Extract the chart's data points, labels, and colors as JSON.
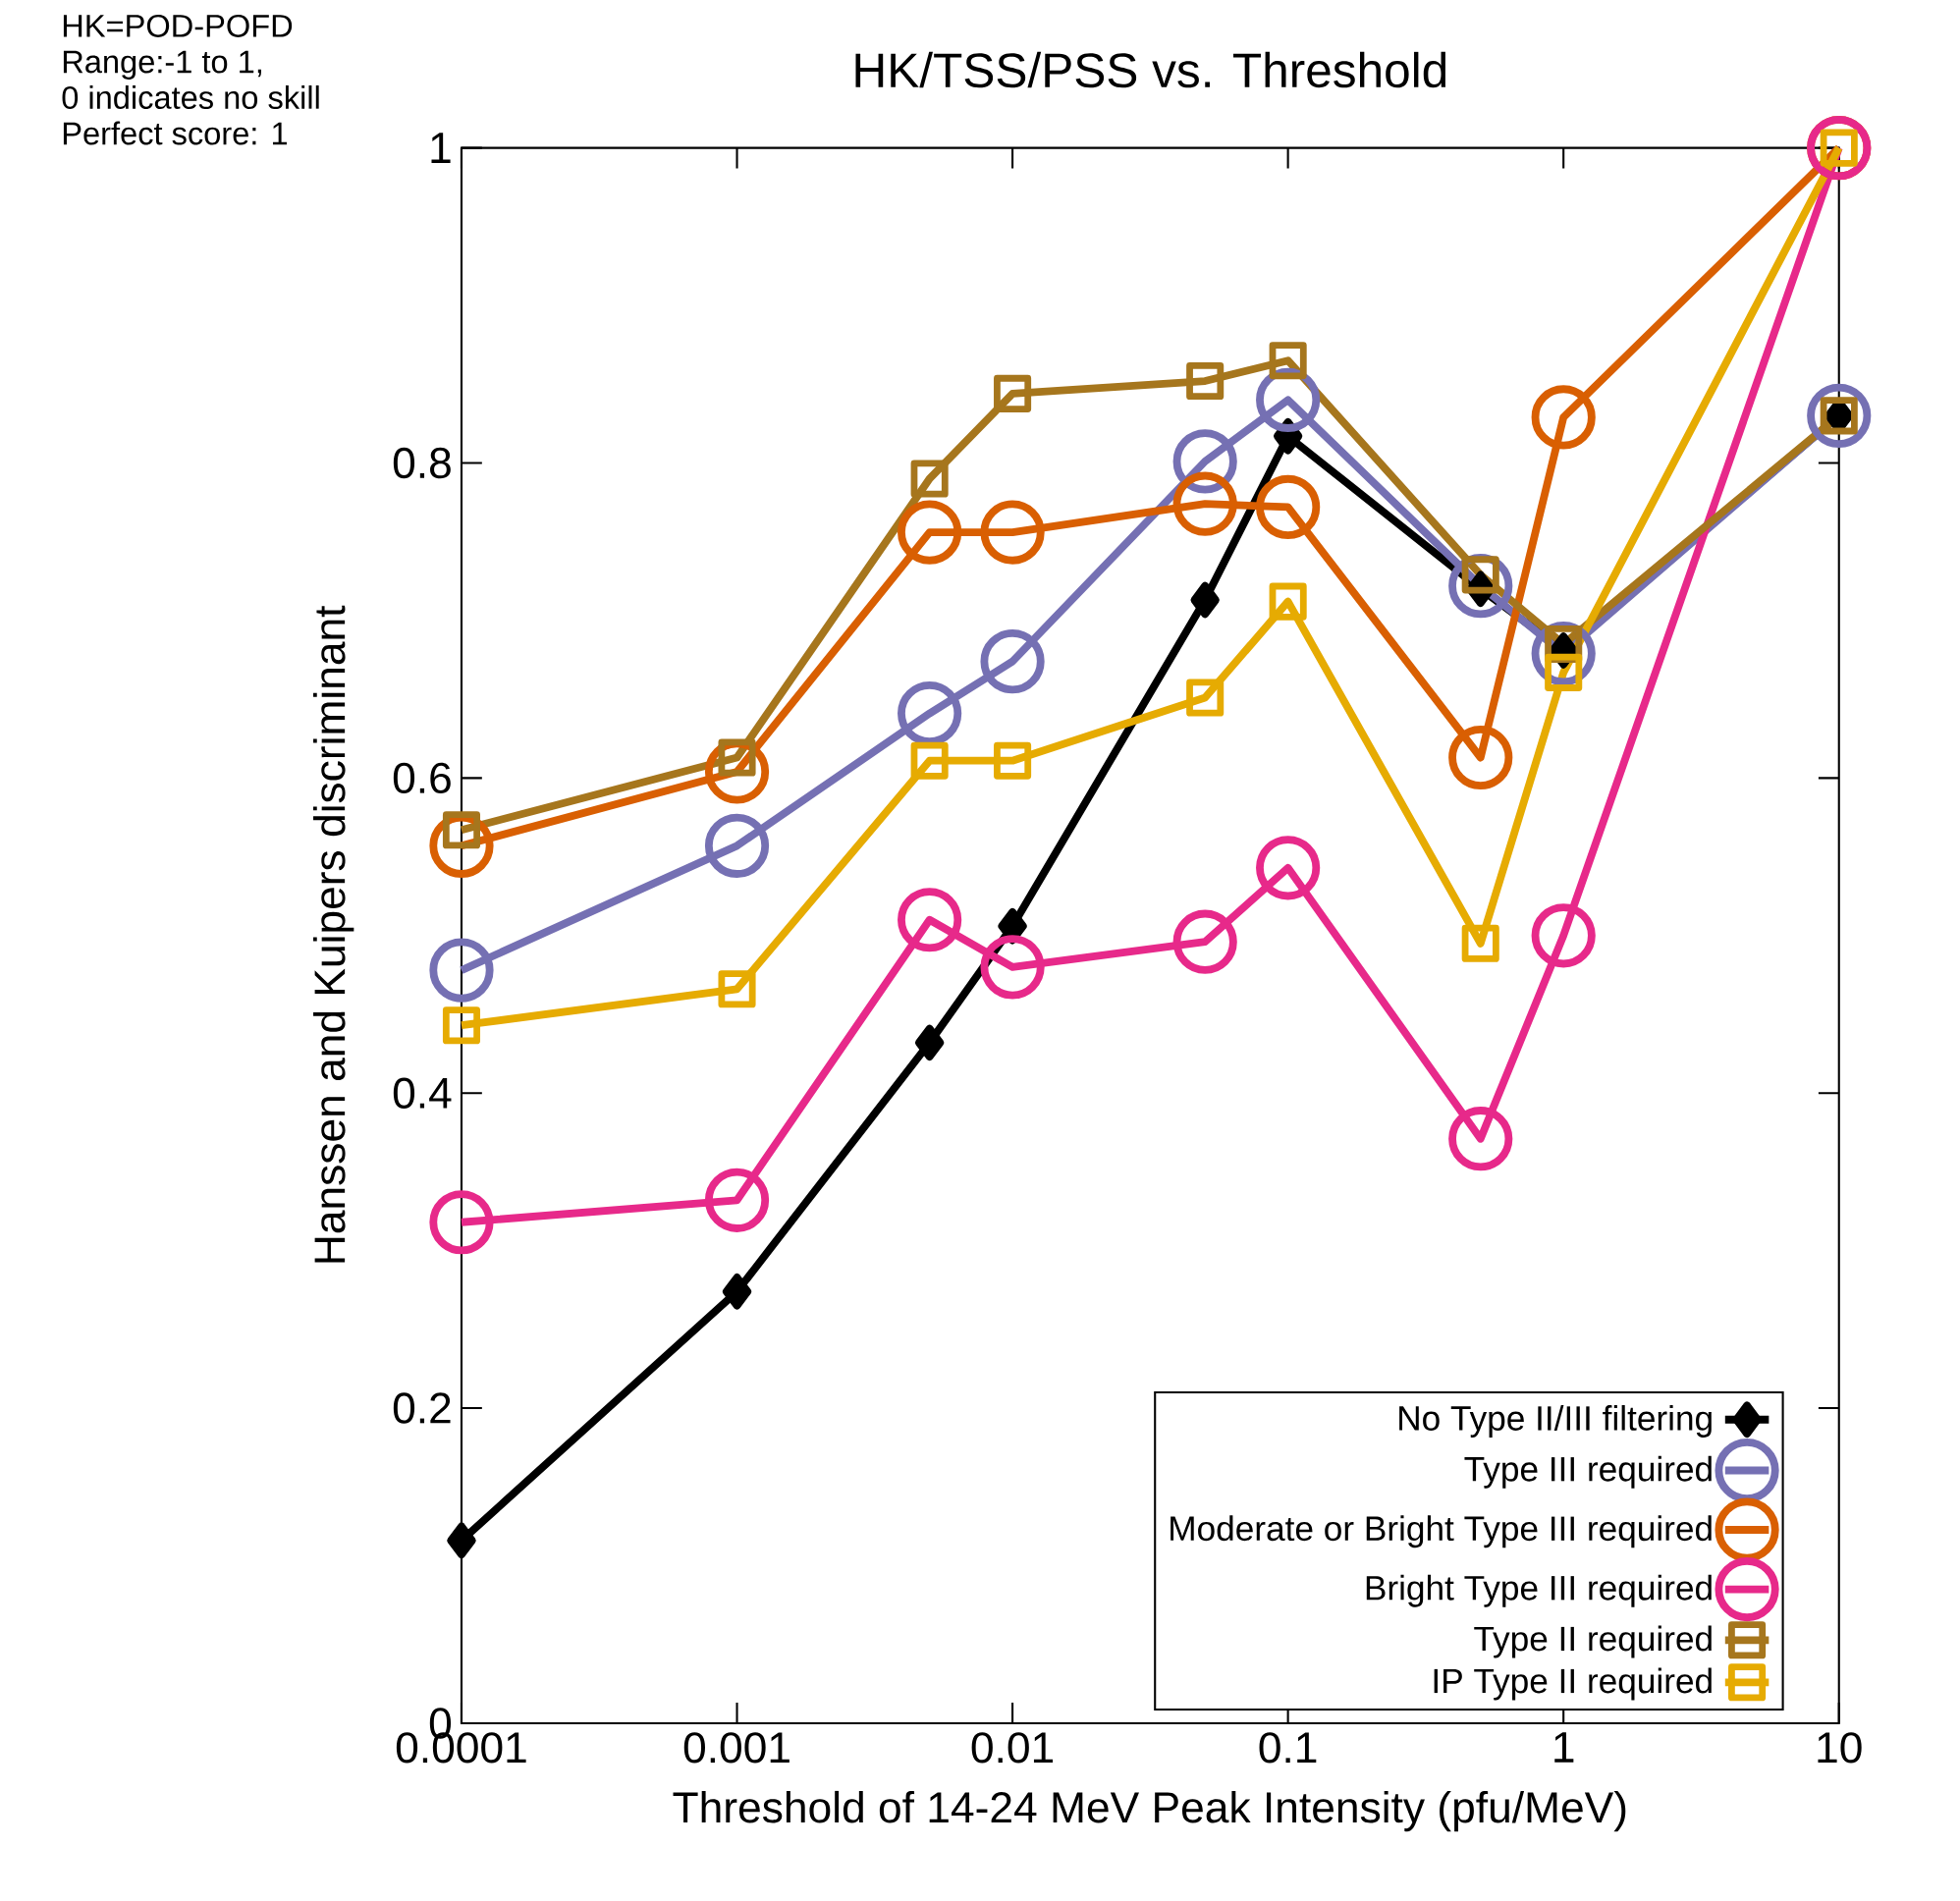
{
  "chart_data": {
    "type": "line",
    "title": "HK/TSS/PSS vs. Threshold",
    "xlabel": "Threshold of 14-24 MeV Peak Intensity (pfu/MeV)",
    "ylabel": "Hanssen and Kuipers discriminant",
    "annotations": [
      "HK=POD-POFD",
      "Range:-1 to 1,",
      "0 indicates no skill",
      "Perfect score: 1"
    ],
    "x": [
      0.0001,
      0.001,
      0.005,
      0.01,
      0.05,
      0.1,
      0.5,
      1,
      10
    ],
    "series": [
      {
        "name": "No Type II/III filtering",
        "color": "#000000",
        "marker": "diamond",
        "values": [
          0.116,
          0.274,
          0.432,
          0.506,
          0.713,
          0.817,
          0.72,
          0.681,
          0.83
        ]
      },
      {
        "name": "Type III required",
        "color": "#7570b3",
        "marker": "circle",
        "values": [
          0.478,
          0.557,
          0.641,
          0.674,
          0.801,
          0.84,
          0.722,
          0.679,
          0.83
        ]
      },
      {
        "name": "Moderate or Bright Type III required",
        "color": "#d95f02",
        "marker": "circle",
        "values": [
          0.557,
          0.604,
          0.756,
          0.756,
          0.774,
          0.772,
          0.613,
          0.829,
          1.0
        ]
      },
      {
        "name": "Bright Type III required",
        "color": "#e7298a",
        "marker": "circle",
        "values": [
          0.318,
          0.332,
          0.51,
          0.48,
          0.496,
          0.543,
          0.371,
          0.5,
          1.0
        ]
      },
      {
        "name": "Type II required",
        "color": "#a6761d",
        "marker": "square",
        "values": [
          0.567,
          0.613,
          0.79,
          0.844,
          0.852,
          0.865,
          0.729,
          0.685,
          0.83
        ]
      },
      {
        "name": "IP Type II required",
        "color": "#e6ab02",
        "marker": "square",
        "values": [
          0.443,
          0.466,
          0.611,
          0.611,
          0.651,
          0.712,
          0.495,
          0.667,
          1.0
        ]
      }
    ],
    "log": "x",
    "xlim": [
      0.0001,
      10
    ],
    "ylim": [
      0,
      1
    ],
    "xticks": [
      0.0001,
      0.001,
      0.01,
      0.1,
      1,
      10
    ],
    "yticks": [
      0,
      0.2,
      0.4,
      0.6,
      0.8,
      1
    ],
    "legend": "bottom right",
    "line_style": "solid",
    "grid": false
  }
}
